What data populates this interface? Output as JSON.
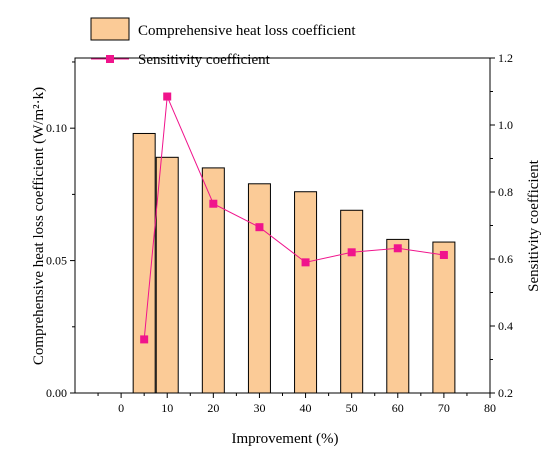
{
  "chart_data": {
    "type": "bar",
    "x_axis": {
      "label": "Improvement (%)",
      "range": [
        -10,
        80
      ],
      "ticks": [
        0,
        10,
        20,
        30,
        40,
        50,
        60,
        70,
        80
      ],
      "tick_labels": [
        "0",
        "10",
        "20",
        "30",
        "40",
        "50",
        "60",
        "70",
        "80"
      ]
    },
    "y_left": {
      "label": "Comprehensive heat loss coefficient (W/m²·k)",
      "range": [
        0,
        0.1265
      ],
      "ticks": [
        0.0,
        0.05,
        0.1
      ],
      "tick_labels": [
        "0.00",
        "0.05",
        "0.10"
      ]
    },
    "y_right": {
      "label": "Sensitivity coefficient",
      "range": [
        0.2,
        1.2
      ],
      "ticks": [
        0.2,
        0.4,
        0.6,
        0.8,
        1.0,
        1.2
      ],
      "tick_labels": [
        "0.2",
        "0.4",
        "0.6",
        "0.8",
        "1.0",
        "1.2"
      ]
    },
    "series": [
      {
        "name": "Comprehensive heat loss coefficient",
        "type": "bar",
        "axis": "left",
        "color": "#FBCB97",
        "x": [
          5,
          10,
          20,
          30,
          40,
          50,
          60,
          70
        ],
        "values": [
          0.098,
          0.089,
          0.085,
          0.079,
          0.076,
          0.069,
          0.058,
          0.057
        ]
      },
      {
        "name": "Sensitivity coefficient",
        "type": "line",
        "axis": "right",
        "color": "#F0148C",
        "marker": "square",
        "x": [
          5,
          10,
          20,
          30,
          40,
          50,
          60,
          70
        ],
        "values": [
          0.36,
          1.085,
          0.765,
          0.695,
          0.59,
          0.62,
          0.632,
          0.612
        ]
      }
    ],
    "legend": {
      "placement": "top-left"
    },
    "grid": false
  }
}
